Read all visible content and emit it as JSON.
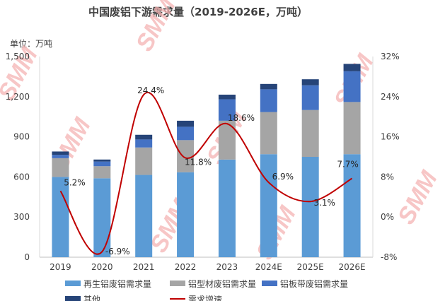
{
  "title": "中国废铝下游需求量（2019-2026E，万吨）",
  "unit_label": "单位：万吨",
  "watermark": "SMM",
  "colors": {
    "recycled": "#5b9bd5",
    "profile": "#a5a5a5",
    "sheet": "#4472c4",
    "other": "#264478",
    "growth": "#c00000",
    "watermark": "#f4b3b3"
  },
  "chart_data": {
    "type": "bar",
    "stacked": true,
    "title": "中国废铝下游需求量（2019-2026E，万吨）",
    "categories": [
      "2019",
      "2020",
      "2021",
      "2022",
      "2023",
      "2024E",
      "2025E",
      "2026E"
    ],
    "ylim": [
      0,
      1500
    ],
    "yticks": [
      "0",
      "300",
      "600",
      "900",
      "1,200",
      "1,500"
    ],
    "y2lim": [
      -8,
      32
    ],
    "y2ticks": [
      "-8%",
      "0%",
      "8%",
      "16%",
      "24%",
      "32%"
    ],
    "series": [
      {
        "name": "再生铝废铝需求量",
        "values": [
          600,
          590,
          615,
          635,
          730,
          770,
          750,
          770
        ]
      },
      {
        "name": "铝型材废铝需求量",
        "values": [
          140,
          90,
          205,
          240,
          290,
          315,
          350,
          390
        ]
      },
      {
        "name": "铝板带废铝需求量",
        "values": [
          25,
          35,
          60,
          100,
          160,
          170,
          185,
          230
        ]
      },
      {
        "name": "其他",
        "values": [
          25,
          15,
          35,
          45,
          35,
          40,
          45,
          55
        ]
      }
    ],
    "growth": {
      "name": "需求增速",
      "values": [
        5.2,
        -6.9,
        24.4,
        11.8,
        18.6,
        6.9,
        3.1,
        7.7
      ],
      "labels": [
        "5.2%",
        "-6.9%",
        "24.4%",
        "11.8%",
        "18.6%",
        "6.9%",
        "3.1%",
        "7.7%"
      ]
    },
    "legend_position": "bottom"
  }
}
